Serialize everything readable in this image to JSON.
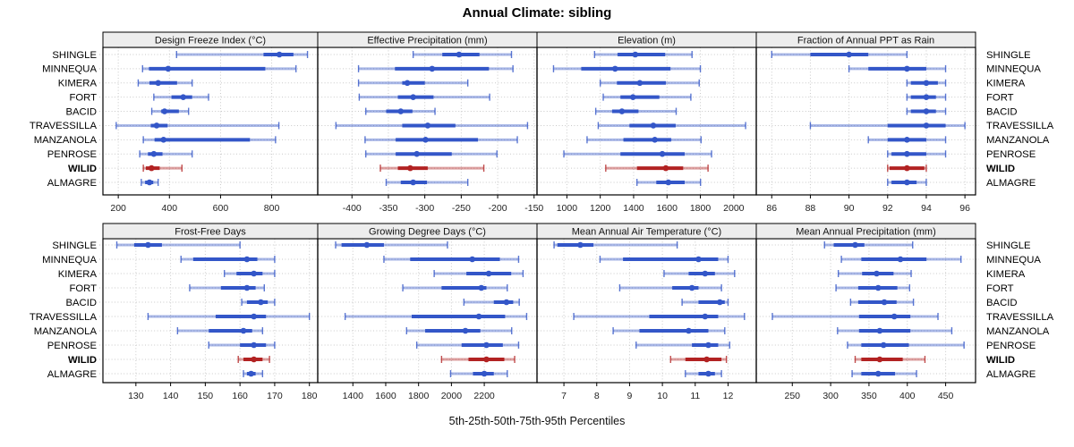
{
  "title": "Annual Climate: sibling",
  "caption": "5th-25th-50th-75th-95th Percentiles",
  "colors": {
    "blue": "#3356C8",
    "red": "#B22222",
    "strip_bg": "#EDEDED",
    "grid": "#C9C9C9",
    "border": "#000000"
  },
  "chart_data": {
    "type": "dotplot",
    "layout": "2x4 trellis, percentile intervals per site",
    "percentile_levels": [
      5,
      25,
      50,
      75,
      95
    ],
    "sites": [
      "SHINGLE",
      "MINNEQUA",
      "KIMERA",
      "FORT",
      "BACID",
      "TRAVESSILLA",
      "MANZANOLA",
      "PENROSE",
      "WILID",
      "ALMAGRE"
    ],
    "highlight_site": "WILID",
    "panels": [
      {
        "title": "Design Freeze Index (°C)",
        "row": 0,
        "col": 0,
        "xlim": [
          140,
          980
        ],
        "ticks": [
          200,
          400,
          600,
          800
        ],
        "values": [
          [
            428,
            768,
            830,
            885,
            940
          ],
          [
            295,
            320,
            395,
            775,
            895
          ],
          [
            278,
            322,
            356,
            430,
            489
          ],
          [
            339,
            408,
            454,
            489,
            553
          ],
          [
            331,
            368,
            381,
            437,
            475
          ],
          [
            192,
            327,
            350,
            393,
            828
          ],
          [
            298,
            342,
            377,
            715,
            815
          ],
          [
            284,
            316,
            339,
            373,
            489
          ],
          [
            298,
            308,
            330,
            362,
            449
          ],
          [
            290,
            305,
            322,
            337,
            356
          ]
        ]
      },
      {
        "title": "Effective Precipitation (mm)",
        "row": 0,
        "col": 1,
        "xlim": [
          -447,
          -146
        ],
        "ticks": [
          -400,
          -350,
          -300,
          -250,
          -200,
          -150
        ],
        "values": [
          [
            -316,
            -276,
            -253,
            -225,
            -181
          ],
          [
            -391,
            -341,
            -290,
            -212,
            -179
          ],
          [
            -391,
            -331,
            -324,
            -300,
            -241
          ],
          [
            -390,
            -337,
            -316,
            -288,
            -211
          ],
          [
            -381,
            -353,
            -333,
            -317,
            -286
          ],
          [
            -422,
            -331,
            -296,
            -258,
            -159
          ],
          [
            -382,
            -340,
            -299,
            -227,
            -173
          ],
          [
            -381,
            -340,
            -311,
            -263,
            -201
          ],
          [
            -361,
            -337,
            -320,
            -296,
            -219
          ],
          [
            -353,
            -333,
            -316,
            -297,
            -241
          ]
        ]
      },
      {
        "title": "Elevation (m)",
        "row": 0,
        "col": 2,
        "xlim": [
          821,
          2135
        ],
        "ticks": [
          1000,
          1200,
          1400,
          1600,
          1800,
          2000
        ],
        "values": [
          [
            1166,
            1304,
            1410,
            1589,
            1750
          ],
          [
            920,
            1086,
            1289,
            1621,
            1800
          ],
          [
            1200,
            1300,
            1437,
            1593,
            1793
          ],
          [
            1218,
            1321,
            1396,
            1554,
            1743
          ],
          [
            1173,
            1271,
            1330,
            1429,
            1655
          ],
          [
            1188,
            1375,
            1518,
            1652,
            2071
          ],
          [
            1121,
            1339,
            1527,
            1625,
            1804
          ],
          [
            982,
            1321,
            1572,
            1706,
            1867
          ],
          [
            1233,
            1420,
            1593,
            1697,
            1846
          ],
          [
            1420,
            1536,
            1608,
            1706,
            1801
          ]
        ]
      },
      {
        "title": "Fraction of Annual PPT as Rain",
        "row": 0,
        "col": 3,
        "xlim": [
          85.2,
          96.55
        ],
        "ticks": [
          86,
          88,
          90,
          92,
          94,
          96
        ],
        "values": [
          [
            86,
            88,
            90,
            91,
            93
          ],
          [
            90,
            91,
            93,
            94,
            95
          ],
          [
            93,
            93.2,
            94,
            94.6,
            95
          ],
          [
            93,
            93.2,
            94,
            94.5,
            95
          ],
          [
            93,
            93.2,
            94,
            94.5,
            95
          ],
          [
            88,
            92,
            94,
            95,
            96
          ],
          [
            91,
            92,
            93,
            94,
            95
          ],
          [
            92,
            92.2,
            93,
            94,
            95
          ],
          [
            92,
            92.1,
            93,
            93.9,
            94
          ],
          [
            92,
            92.2,
            93,
            93.5,
            94
          ]
        ]
      },
      {
        "title": "Frost-Free Days",
        "row": 1,
        "col": 0,
        "xlim": [
          120.5,
          182.4
        ],
        "ticks": [
          130,
          140,
          150,
          160,
          170,
          180
        ],
        "values": [
          [
            124.5,
            129.5,
            133.5,
            137.5,
            160
          ],
          [
            143,
            146.5,
            162,
            165,
            170
          ],
          [
            155.5,
            159,
            164,
            166.5,
            170
          ],
          [
            145.5,
            154.5,
            162,
            164.5,
            167
          ],
          [
            160.5,
            162,
            166,
            168,
            170
          ],
          [
            133.5,
            153,
            164,
            167.5,
            180
          ],
          [
            142,
            151,
            161,
            163.5,
            166.5
          ],
          [
            151,
            160,
            164,
            167.5,
            170
          ],
          [
            159.5,
            161,
            164,
            166.5,
            168.5
          ],
          [
            161,
            162,
            163.2,
            164.5,
            166.5
          ]
        ]
      },
      {
        "title": "Growing Degree Days (°C)",
        "row": 1,
        "col": 1,
        "xlim": [
          1186,
          2521
        ],
        "ticks": [
          1400,
          1600,
          1800,
          2000,
          2200
        ],
        "values": [
          [
            1295,
            1331,
            1485,
            1589,
            1976
          ],
          [
            1589,
            1749,
            2127,
            2295,
            2409
          ],
          [
            1895,
            2091,
            2227,
            2364,
            2436
          ],
          [
            1704,
            1940,
            2182,
            2213,
            2340
          ],
          [
            2076,
            2258,
            2335,
            2376,
            2413
          ],
          [
            1353,
            1758,
            2167,
            2327,
            2458
          ],
          [
            1727,
            1840,
            2085,
            2176,
            2367
          ],
          [
            1789,
            2062,
            2213,
            2313,
            2409
          ],
          [
            1940,
            2104,
            2213,
            2322,
            2385
          ],
          [
            1995,
            2131,
            2200,
            2258,
            2340
          ]
        ]
      },
      {
        "title": "Mean Annual Air Temperature (°C)",
        "row": 1,
        "col": 2,
        "xlim": [
          6.18,
          12.86
        ],
        "ticks": [
          7,
          8,
          9,
          10,
          11,
          12
        ],
        "values": [
          [
            6.7,
            6.8,
            7.5,
            7.9,
            10.45
          ],
          [
            8.1,
            8.8,
            11.1,
            11.7,
            12
          ],
          [
            10.05,
            10.8,
            11.3,
            11.6,
            12.2
          ],
          [
            8.7,
            10.3,
            10.9,
            11.1,
            11.8
          ],
          [
            10.6,
            11.1,
            11.75,
            11.9,
            12
          ],
          [
            7.3,
            9.6,
            11.3,
            11.7,
            12.5
          ],
          [
            8.5,
            9.3,
            10.8,
            11.4,
            11.9
          ],
          [
            9.2,
            10.9,
            11.4,
            11.7,
            12.05
          ],
          [
            10.25,
            10.7,
            11.35,
            11.8,
            11.95
          ],
          [
            10.7,
            11.1,
            11.4,
            11.6,
            11.8
          ]
        ]
      },
      {
        "title": "Mean Annual Precipitation (mm)",
        "row": 1,
        "col": 3,
        "xlim": [
          203,
          489
        ],
        "ticks": [
          250,
          300,
          350,
          400,
          450
        ],
        "values": [
          [
            292,
            304,
            332,
            344,
            407
          ],
          [
            314,
            340,
            391,
            425,
            470
          ],
          [
            310,
            341,
            360,
            382,
            405
          ],
          [
            307,
            336,
            362,
            387,
            403
          ],
          [
            326,
            336,
            370,
            386,
            408
          ],
          [
            224,
            337,
            383,
            404,
            440
          ],
          [
            309,
            337,
            364,
            404,
            458
          ],
          [
            322,
            340,
            369,
            402,
            474
          ],
          [
            332,
            340,
            364,
            394,
            423
          ],
          [
            328,
            340,
            362,
            384,
            412
          ]
        ]
      }
    ]
  }
}
